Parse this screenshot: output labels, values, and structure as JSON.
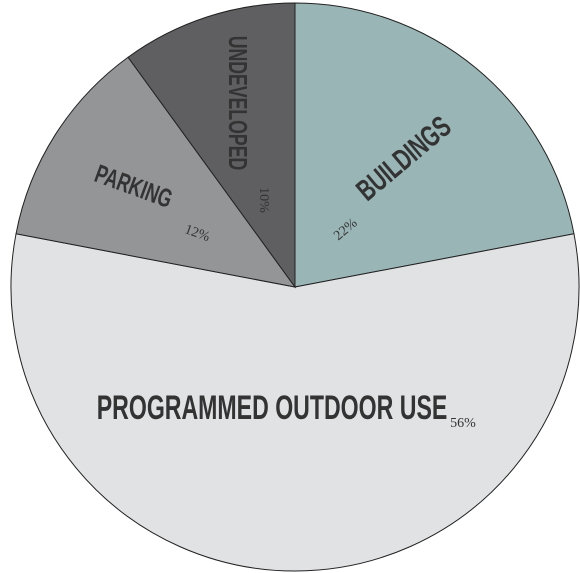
{
  "chart_data": {
    "type": "pie",
    "categories": [
      "BUILDINGS",
      "PROGRAMMED OUTDOOR USE",
      "PARKING",
      "UNDEVELOPED"
    ],
    "values": [
      22,
      56,
      12,
      10
    ],
    "value_labels": [
      "22%",
      "56%",
      "12%",
      "10%"
    ],
    "colors": [
      "#9ab5b6",
      "#e1e2e4",
      "#949597",
      "#5f5f61"
    ]
  }
}
